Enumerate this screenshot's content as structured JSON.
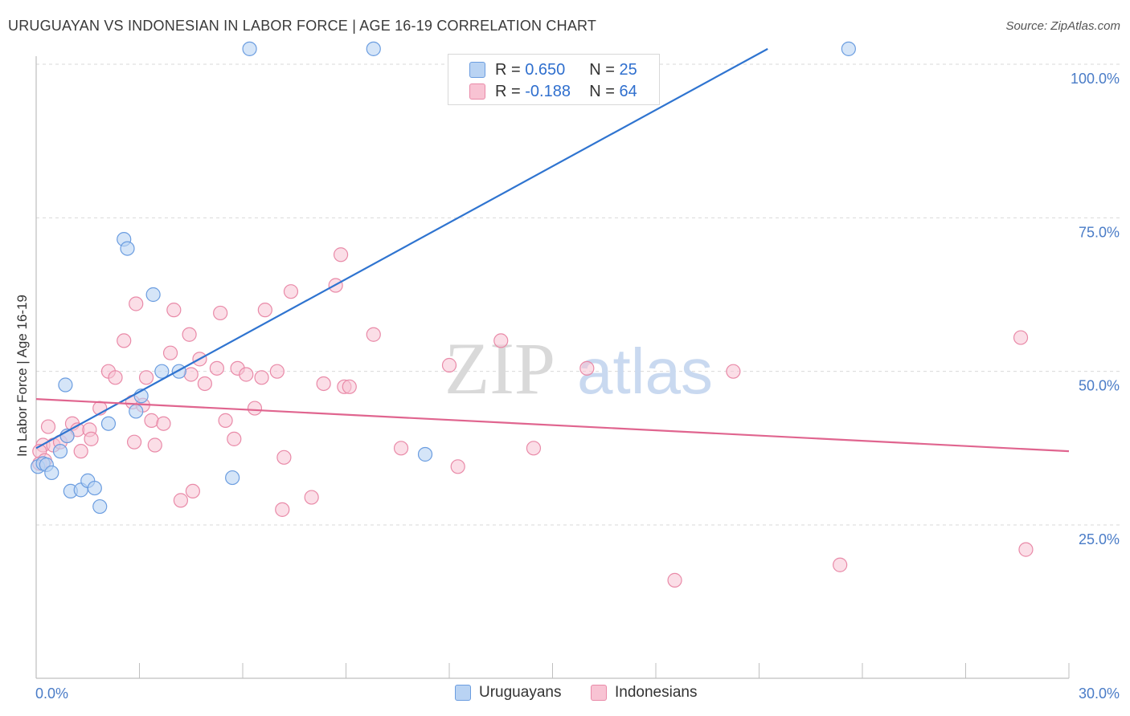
{
  "title": "URUGUAYAN VS INDONESIAN IN LABOR FORCE | AGE 16-19 CORRELATION CHART",
  "source": "Source: ZipAtlas.com",
  "watermark": {
    "zip": "ZIP",
    "atlas": "atlas"
  },
  "legend": {
    "uruguayans": {
      "r_label": "R =",
      "r_value": "0.650",
      "n_label": "N =",
      "n_value": "25"
    },
    "indonesians": {
      "r_label": "R =",
      "r_value": "-0.188",
      "n_label": "N =",
      "n_value": "64"
    }
  },
  "bottom_legend": {
    "uruguayans": "Uruguayans",
    "indonesians": "Indonesians"
  },
  "colors": {
    "blue_fill": "#b9d3f3",
    "blue_stroke": "#6b9de0",
    "blue_line": "#2f74d0",
    "pink_fill": "#f8c3d3",
    "pink_stroke": "#e98aa8",
    "pink_line": "#e0658f",
    "axis_text": "#4a7cc7",
    "grid": "#d9d9d9"
  },
  "chart_data": {
    "type": "scatter",
    "title": "URUGUAYAN VS INDONESIAN IN LABOR FORCE | AGE 16-19 CORRELATION CHART",
    "xlabel": "",
    "ylabel": "In Labor Force | Age 16-19",
    "xlim": [
      0,
      30
    ],
    "ylim": [
      3,
      105
    ],
    "x_tick_labels": [
      "0.0%",
      "30.0%"
    ],
    "y_ticks": [
      25,
      50,
      75,
      100
    ],
    "y_tick_labels": [
      "25.0%",
      "50.0%",
      "75.0%",
      "100.0%"
    ],
    "grid": true,
    "legend_position": "top-center",
    "series": [
      {
        "name": "Uruguayans",
        "color": "#6b9de0",
        "points": [
          [
            0.05,
            34.5
          ],
          [
            0.2,
            35.0
          ],
          [
            0.3,
            34.8
          ],
          [
            0.45,
            33.5
          ],
          [
            0.7,
            37.0
          ],
          [
            0.9,
            39.5
          ],
          [
            1.0,
            30.5
          ],
          [
            1.3,
            30.7
          ],
          [
            1.5,
            32.2
          ],
          [
            1.7,
            31.0
          ],
          [
            1.85,
            28.0
          ],
          [
            2.1,
            41.5
          ],
          [
            2.55,
            71.5
          ],
          [
            2.65,
            70.0
          ],
          [
            2.9,
            43.5
          ],
          [
            3.05,
            46.0
          ],
          [
            3.4,
            62.5
          ],
          [
            3.65,
            50.0
          ],
          [
            4.15,
            50.0
          ],
          [
            5.7,
            32.7
          ],
          [
            6.2,
            102.5
          ],
          [
            9.8,
            102.5
          ],
          [
            11.3,
            36.5
          ],
          [
            23.6,
            102.5
          ],
          [
            0.85,
            47.8
          ]
        ],
        "trend": {
          "x": [
            0.0,
            21.25
          ],
          "y": [
            37.5,
            102.5
          ]
        }
      },
      {
        "name": "Indonesians",
        "color": "#e98aa8",
        "points": [
          [
            0.1,
            35.0
          ],
          [
            0.2,
            38.0
          ],
          [
            0.35,
            41.0
          ],
          [
            0.5,
            38.0
          ],
          [
            0.7,
            38.5
          ],
          [
            0.9,
            39.5
          ],
          [
            1.05,
            41.5
          ],
          [
            1.2,
            40.5
          ],
          [
            1.3,
            37.0
          ],
          [
            1.55,
            40.5
          ],
          [
            1.6,
            39.0
          ],
          [
            1.85,
            44.0
          ],
          [
            2.1,
            50.0
          ],
          [
            2.3,
            49.0
          ],
          [
            2.55,
            55.0
          ],
          [
            2.8,
            45.0
          ],
          [
            2.85,
            38.5
          ],
          [
            2.9,
            61.0
          ],
          [
            3.1,
            44.5
          ],
          [
            3.2,
            49.0
          ],
          [
            3.35,
            42.0
          ],
          [
            3.45,
            38.0
          ],
          [
            3.7,
            41.5
          ],
          [
            3.9,
            53.0
          ],
          [
            4.0,
            60.0
          ],
          [
            4.2,
            29.0
          ],
          [
            4.45,
            56.0
          ],
          [
            4.5,
            49.5
          ],
          [
            4.55,
            30.5
          ],
          [
            4.75,
            52.0
          ],
          [
            4.9,
            48.0
          ],
          [
            5.25,
            50.5
          ],
          [
            5.35,
            59.5
          ],
          [
            5.5,
            42.0
          ],
          [
            5.75,
            39.0
          ],
          [
            5.85,
            50.5
          ],
          [
            6.1,
            49.5
          ],
          [
            6.35,
            44.0
          ],
          [
            6.55,
            49.0
          ],
          [
            6.65,
            60.0
          ],
          [
            7.0,
            50.0
          ],
          [
            7.15,
            27.5
          ],
          [
            7.2,
            36.0
          ],
          [
            7.4,
            63.0
          ],
          [
            8.0,
            29.5
          ],
          [
            8.35,
            48.0
          ],
          [
            8.7,
            64.0
          ],
          [
            8.85,
            69.0
          ],
          [
            8.95,
            47.5
          ],
          [
            9.1,
            47.5
          ],
          [
            9.8,
            56.0
          ],
          [
            10.6,
            37.5
          ],
          [
            12.0,
            51.0
          ],
          [
            12.25,
            34.5
          ],
          [
            13.5,
            55.0
          ],
          [
            14.45,
            37.5
          ],
          [
            16.0,
            50.5
          ],
          [
            18.55,
            16.0
          ],
          [
            20.25,
            50.0
          ],
          [
            23.35,
            18.5
          ],
          [
            28.6,
            55.5
          ],
          [
            28.75,
            21.0
          ],
          [
            0.1,
            37.0
          ],
          [
            0.25,
            35.5
          ]
        ],
        "trend": {
          "x": [
            0.0,
            30.0
          ],
          "y": [
            45.5,
            37.0
          ]
        }
      }
    ]
  }
}
